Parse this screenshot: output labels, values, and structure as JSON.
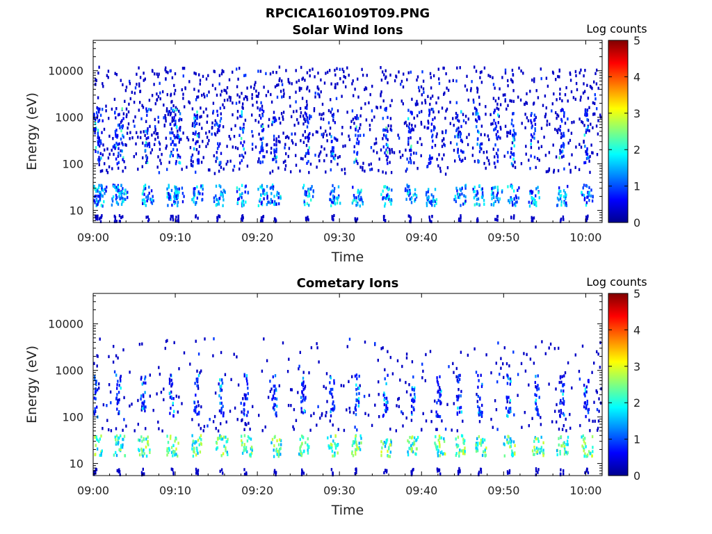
{
  "figure": {
    "title": "RPCICA160109T09.PNG"
  },
  "colorbar": {
    "label": "Log counts",
    "range": [
      0,
      5
    ],
    "ticks": [
      "0",
      "1",
      "2",
      "3",
      "4",
      "5"
    ],
    "colormap": [
      "#00008f",
      "#0000ff",
      "#0080ff",
      "#00ffff",
      "#80ff80",
      "#ffff00",
      "#ff8000",
      "#ff0000",
      "#800000"
    ]
  },
  "chart_data": [
    {
      "type": "heatmap",
      "title": "Solar Wind Ions",
      "xlabel": "Time",
      "ylabel": "Energy (eV)",
      "x_range": [
        "09:00",
        "10:02"
      ],
      "x_ticks": [
        "09:00",
        "09:10",
        "09:20",
        "09:30",
        "09:40",
        "09:50",
        "10:00"
      ],
      "y_scale": "log",
      "y_range": [
        5.5,
        45000
      ],
      "y_ticks": [
        "10",
        "100",
        "1000",
        "10000"
      ],
      "y_tick_values": [
        10,
        100,
        1000,
        10000
      ],
      "z_range": [
        0,
        5
      ],
      "streaks_minutes": [
        0.3,
        0.8,
        2.7,
        3.3,
        6.5,
        9.5,
        10.2,
        12.5,
        15.2,
        18.0,
        20.5,
        22.0,
        26.0,
        29.2,
        32.0,
        35.5,
        38.5,
        41.0,
        44.5,
        46.8,
        49.0,
        51.0,
        53.5,
        57.0,
        60.0
      ],
      "band_energy_eV": 22,
      "band_intensity_log": 1.3,
      "streak_peak_log": 2.0,
      "background_range_eV": [
        60,
        12000
      ]
    },
    {
      "type": "heatmap",
      "title": "Cometary Ions",
      "xlabel": "Time",
      "ylabel": "Energy (eV)",
      "x_range": [
        "09:00",
        "10:02"
      ],
      "x_ticks": [
        "09:00",
        "09:10",
        "09:20",
        "09:30",
        "09:40",
        "09:50",
        "10:00"
      ],
      "y_scale": "log",
      "y_range": [
        5.5,
        45000
      ],
      "y_ticks": [
        "10",
        "100",
        "1000",
        "10000"
      ],
      "y_tick_values": [
        10,
        100,
        1000,
        10000
      ],
      "z_range": [
        0,
        5
      ],
      "streaks_minutes": [
        0.2,
        3.0,
        6.0,
        9.5,
        12.5,
        15.5,
        18.5,
        22.0,
        25.5,
        29.0,
        32.0,
        35.5,
        38.8,
        42.0,
        44.5,
        47.0,
        50.5,
        54.0,
        57.0,
        60.0
      ],
      "band_energy_eV": 25,
      "band_intensity_log": 2.2,
      "streak_peak_log": 1.6,
      "background_range_eV": [
        50,
        5000
      ]
    }
  ]
}
